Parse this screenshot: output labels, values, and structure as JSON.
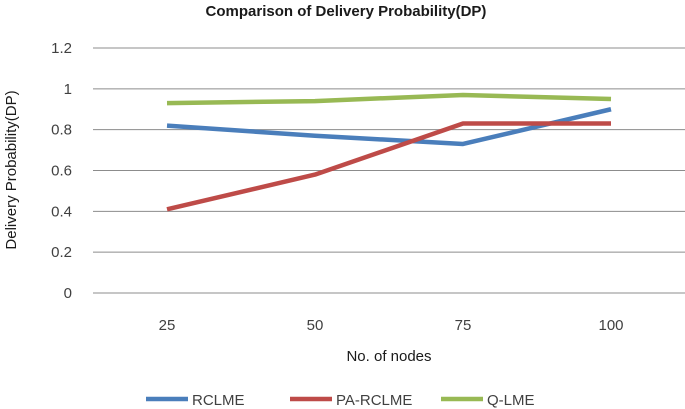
{
  "chart_data": {
    "type": "line",
    "title": "Comparison  of Delivery Probability(DP)",
    "xlabel": "No. of nodes",
    "ylabel": "Delivery Probability(DP)",
    "categories": [
      "25",
      "50",
      "75",
      "100"
    ],
    "ylim": [
      0,
      1.2
    ],
    "yticks": [
      0,
      0.2,
      0.4,
      0.6,
      0.8,
      1,
      1.2
    ],
    "ytick_labels": [
      "0",
      "0.2",
      "0.4",
      "0.6",
      "0.8",
      "1",
      "1.2"
    ],
    "grid": true,
    "legend_position": "bottom",
    "series": [
      {
        "name": "RCLME",
        "color": "#4a7ebb",
        "values": [
          0.82,
          0.77,
          0.73,
          0.9
        ]
      },
      {
        "name": "PA-RCLME",
        "color": "#be4b48",
        "values": [
          0.41,
          0.58,
          0.83,
          0.83
        ]
      },
      {
        "name": "Q-LME",
        "color": "#98b954",
        "values": [
          0.93,
          0.94,
          0.97,
          0.95
        ]
      }
    ]
  }
}
